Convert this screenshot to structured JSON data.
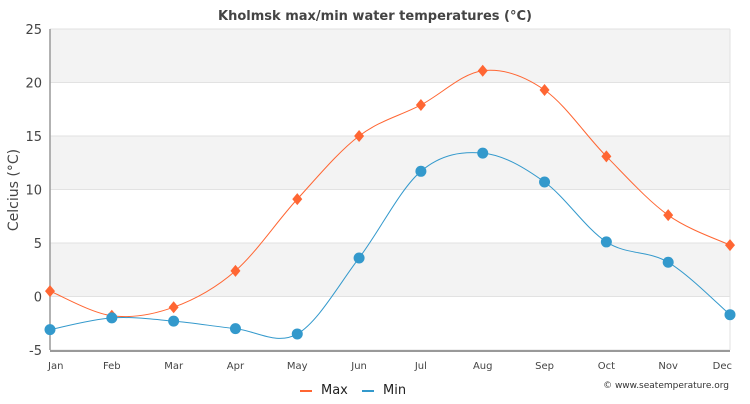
{
  "chart_data": {
    "type": "line",
    "title": "Kholmsk max/min water temperatures (°C)",
    "xlabel": "",
    "ylabel": "Celcius (°C)",
    "ylim": [
      -5,
      25
    ],
    "yticks": [
      -5,
      0,
      5,
      10,
      15,
      20,
      25
    ],
    "categories": [
      "Jan",
      "Feb",
      "Mar",
      "Apr",
      "May",
      "Jun",
      "Jul",
      "Aug",
      "Sep",
      "Oct",
      "Nov",
      "Dec"
    ],
    "series": [
      {
        "name": "Max",
        "color": "#ff6633",
        "marker": "diamond",
        "values": [
          0.5,
          -1.8,
          -1.0,
          2.4,
          9.1,
          15.0,
          17.9,
          21.1,
          19.3,
          13.1,
          7.6,
          4.8
        ]
      },
      {
        "name": "Min",
        "color": "#3399cc",
        "marker": "circle",
        "values": [
          -3.1,
          -2.0,
          -2.3,
          -3.0,
          -3.5,
          3.6,
          11.7,
          13.4,
          10.7,
          5.1,
          3.2,
          -1.7
        ]
      }
    ],
    "legend_position": "bottom-center",
    "grid": true,
    "credit": "© www.seatemperature.org"
  }
}
